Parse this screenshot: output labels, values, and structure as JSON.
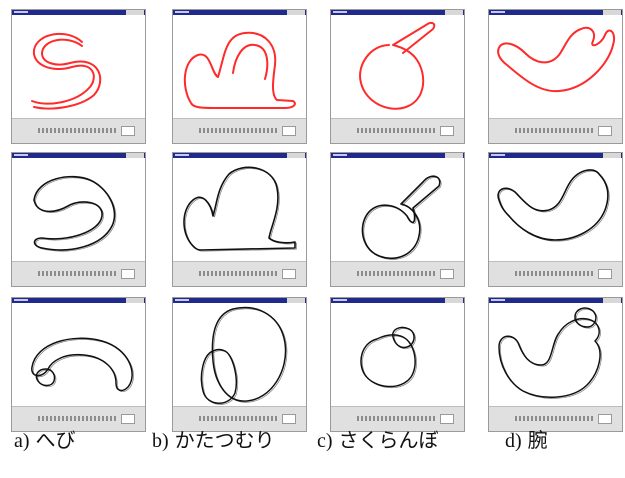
{
  "colors": {
    "stroke_red": "#ff2a2a",
    "stroke_black": "#111111",
    "titlebar": "#1f2a8a"
  },
  "grid": {
    "rows": [
      {
        "row": "input-strokes",
        "windows": [
          {
            "column": "a",
            "shape": "snake"
          },
          {
            "column": "b",
            "shape": "snail"
          },
          {
            "column": "c",
            "shape": "cherry"
          },
          {
            "column": "d",
            "shape": "arm"
          }
        ]
      },
      {
        "row": "rendered-outline",
        "windows": [
          {
            "column": "a",
            "shape": "snake"
          },
          {
            "column": "b",
            "shape": "snail"
          },
          {
            "column": "c",
            "shape": "cherry"
          },
          {
            "column": "d",
            "shape": "arm"
          }
        ]
      },
      {
        "row": "rotated-view",
        "windows": [
          {
            "column": "a",
            "shape": "snake"
          },
          {
            "column": "b",
            "shape": "snail"
          },
          {
            "column": "c",
            "shape": "cherry"
          },
          {
            "column": "d",
            "shape": "arm"
          }
        ]
      }
    ]
  },
  "captions": [
    {
      "key": "a)",
      "label": "へび"
    },
    {
      "key": "b)",
      "label": "かたつむり"
    },
    {
      "key": "c)",
      "label": "さくらんぼ"
    },
    {
      "key": "d)",
      "label": "腕"
    }
  ]
}
